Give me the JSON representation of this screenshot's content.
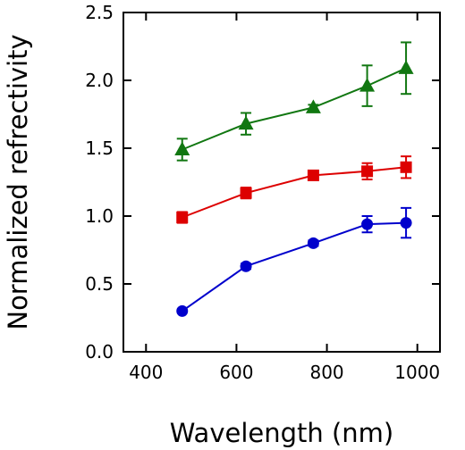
{
  "chart_data": {
    "type": "line",
    "title": "",
    "xlabel": "Wavelength (nm)",
    "ylabel": "Normalized refrectivity",
    "xlim": [
      350,
      1050
    ],
    "ylim": [
      0.0,
      2.5
    ],
    "xticks": [
      "400",
      "600",
      "800",
      "1000"
    ],
    "xtick_values": [
      400,
      600,
      800,
      1000
    ],
    "yticks": [
      "0.0",
      "0.5",
      "1.0",
      "1.5",
      "2.0",
      "2.5"
    ],
    "ytick_values": [
      0.0,
      0.5,
      1.0,
      1.5,
      2.0,
      2.5
    ],
    "grid": false,
    "legend": "none",
    "series": [
      {
        "color": "#0000cc",
        "marker": "circle",
        "x": [
          480,
          621,
          770,
          889,
          975
        ],
        "y": [
          0.3,
          0.63,
          0.8,
          0.94,
          0.95
        ],
        "yerr": [
          0.0,
          0.02,
          0.02,
          0.06,
          0.11
        ]
      },
      {
        "color": "#dd0000",
        "marker": "square",
        "x": [
          480,
          621,
          770,
          889,
          975
        ],
        "y": [
          0.99,
          1.17,
          1.3,
          1.33,
          1.36
        ],
        "yerr": [
          0.04,
          0.04,
          0.03,
          0.06,
          0.08
        ]
      },
      {
        "color": "#117711",
        "marker": "triangle",
        "x": [
          480,
          621,
          770,
          889,
          975
        ],
        "y": [
          1.49,
          1.68,
          1.8,
          1.96,
          2.09
        ],
        "yerr": [
          0.08,
          0.08,
          0.02,
          0.15,
          0.19
        ]
      }
    ]
  }
}
